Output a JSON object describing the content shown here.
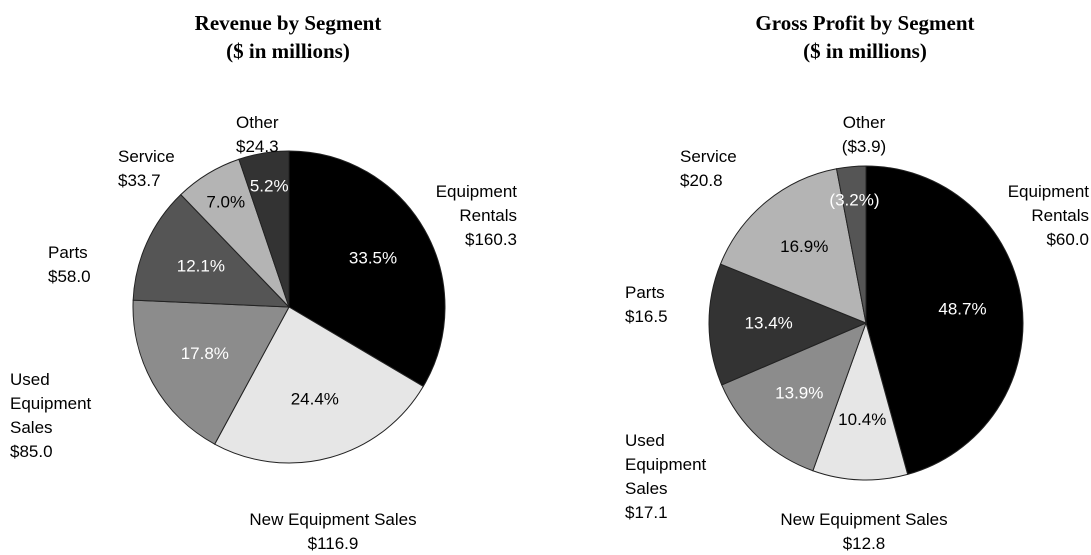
{
  "chart_data": [
    {
      "type": "pie",
      "title": "Revenue by Segment",
      "subtitle": "($ in millions)",
      "categories": [
        "Equipment Rentals",
        "New Equipment Sales",
        "Used Equipment Sales",
        "Parts",
        "Service",
        "Other"
      ],
      "amount_labels": [
        "$160.3",
        "$116.9",
        "$85.0",
        "$58.0",
        "$33.7",
        "$24.3"
      ],
      "values": [
        33.5,
        24.4,
        17.8,
        12.1,
        7.0,
        5.2
      ],
      "value_labels": [
        "33.5%",
        "24.4%",
        "17.8%",
        "12.1%",
        "7.0%",
        "5.2%"
      ],
      "colors": [
        "#000000",
        "#e6e6e6",
        "#8c8c8c",
        "#555555",
        "#b4b4b4",
        "#333333"
      ]
    },
    {
      "type": "pie",
      "title": "Gross Profit by Segment",
      "subtitle": "($ in millions)",
      "categories": [
        "Equipment Rentals",
        "New Equipment Sales",
        "Used Equipment Sales",
        "Parts",
        "Service",
        "Other"
      ],
      "amount_labels": [
        "$60.0",
        "$12.8",
        "$17.1",
        "$16.5",
        "$20.8",
        "($3.9)"
      ],
      "values": [
        48.7,
        10.4,
        13.9,
        13.4,
        16.9,
        -3.2
      ],
      "value_labels": [
        "48.7%",
        "10.4%",
        "13.9%",
        "13.4%",
        "16.9%",
        "(3.2%)"
      ],
      "colors": [
        "#000000",
        "#e6e6e6",
        "#8c8c8c",
        "#333333",
        "#b4b4b4",
        "#555555"
      ]
    }
  ]
}
